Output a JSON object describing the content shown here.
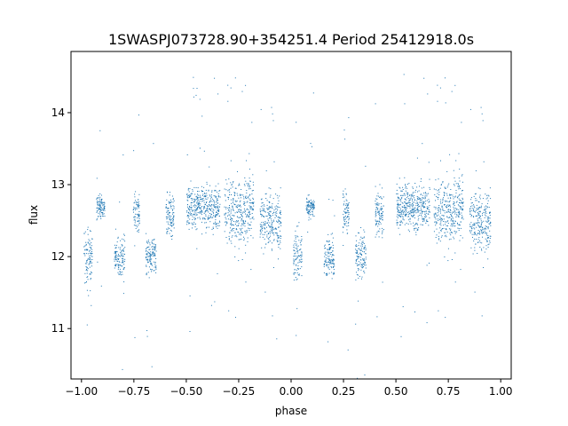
{
  "chart_data": {
    "type": "scatter",
    "title": "1SWASPJ073728.90+354251.4 Period 25412918.0s",
    "xlabel": "phase",
    "ylabel": "flux",
    "xlim": [
      -1.05,
      1.05
    ],
    "ylim": [
      10.3,
      14.85
    ],
    "x_ticks": [
      -1.0,
      -0.75,
      -0.5,
      -0.25,
      0.0,
      0.25,
      0.5,
      0.75,
      1.0
    ],
    "x_tick_labels": [
      "−1.00",
      "−0.75",
      "−0.50",
      "−0.25",
      "0.00",
      "0.25",
      "0.50",
      "0.75",
      "1.00"
    ],
    "y_ticks": [
      11,
      12,
      13,
      14
    ],
    "y_tick_labels": [
      "11",
      "12",
      "13",
      "14"
    ],
    "grid": false,
    "legend": "none",
    "marker_color": "#1f77b4",
    "series": [
      {
        "description_of_structure": "phase-folded light curve; points shown twice (phase -1..0 and 0..1)",
        "clusters": [
          {
            "x_center": -0.97,
            "x_width": 0.04,
            "y_center": 12.0,
            "y_spread": 0.35
          },
          {
            "x_center": -0.91,
            "x_width": 0.04,
            "y_center": 12.7,
            "y_spread": 0.15
          },
          {
            "x_center": -0.82,
            "x_width": 0.05,
            "y_center": 12.0,
            "y_spread": 0.3
          },
          {
            "x_center": -0.74,
            "x_width": 0.03,
            "y_center": 12.6,
            "y_spread": 0.25
          },
          {
            "x_center": -0.67,
            "x_width": 0.05,
            "y_center": 12.0,
            "y_spread": 0.3
          },
          {
            "x_center": -0.58,
            "x_width": 0.04,
            "y_center": 12.6,
            "y_spread": 0.3
          },
          {
            "x_center": -0.42,
            "x_width": 0.16,
            "y_center": 12.7,
            "y_spread": 0.3
          },
          {
            "x_center": -0.25,
            "x_width": 0.14,
            "y_center": 12.65,
            "y_spread": 0.45
          },
          {
            "x_center": -0.1,
            "x_width": 0.1,
            "y_center": 12.5,
            "y_spread": 0.4
          },
          {
            "x_center": 0.03,
            "x_width": 0.04,
            "y_center": 12.0,
            "y_spread": 0.35
          },
          {
            "x_center": 0.09,
            "x_width": 0.04,
            "y_center": 12.7,
            "y_spread": 0.15
          },
          {
            "x_center": 0.18,
            "x_width": 0.05,
            "y_center": 12.0,
            "y_spread": 0.3
          },
          {
            "x_center": 0.26,
            "x_width": 0.03,
            "y_center": 12.6,
            "y_spread": 0.25
          },
          {
            "x_center": 0.33,
            "x_width": 0.05,
            "y_center": 12.0,
            "y_spread": 0.3
          },
          {
            "x_center": 0.42,
            "x_width": 0.04,
            "y_center": 12.6,
            "y_spread": 0.3
          },
          {
            "x_center": 0.58,
            "x_width": 0.16,
            "y_center": 12.7,
            "y_spread": 0.3
          },
          {
            "x_center": 0.75,
            "x_width": 0.14,
            "y_center": 12.65,
            "y_spread": 0.45
          },
          {
            "x_center": 0.9,
            "x_width": 0.1,
            "y_center": 12.5,
            "y_spread": 0.4
          }
        ]
      }
    ]
  }
}
